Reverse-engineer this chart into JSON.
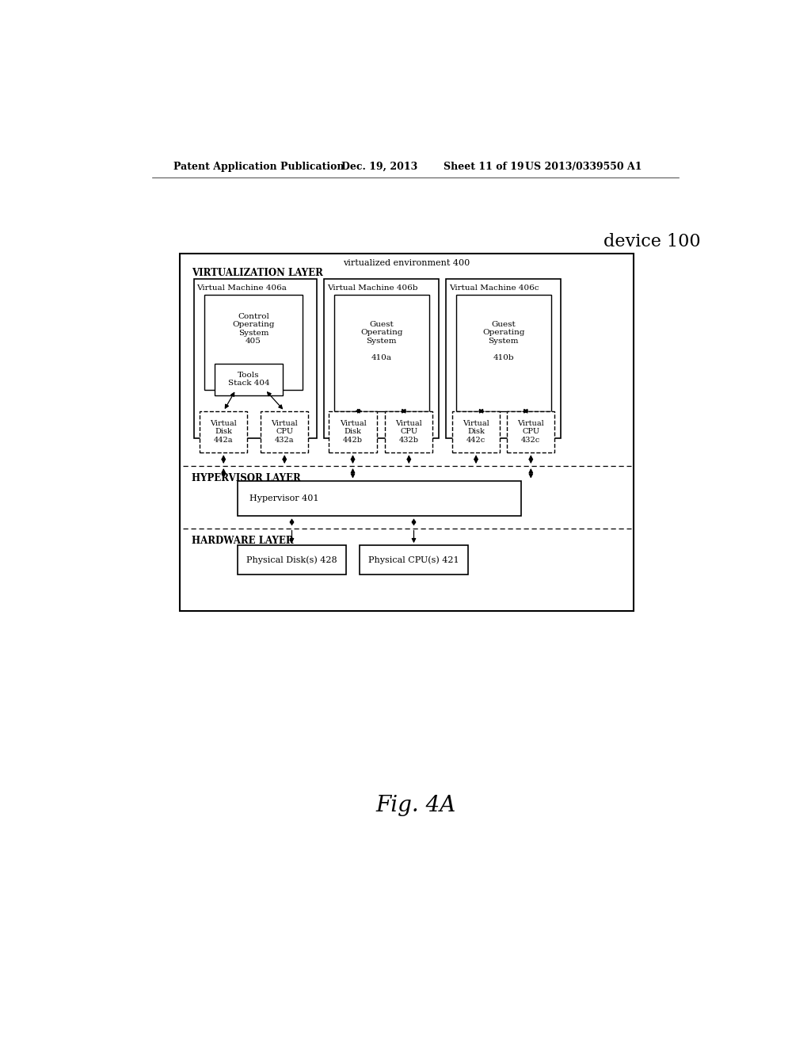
{
  "background_color": "#ffffff",
  "header_text": "Patent Application Publication",
  "header_date": "Dec. 19, 2013",
  "header_sheet": "Sheet 11 of 19",
  "header_patent": "US 2013/0339550 A1",
  "device_label": "device 100",
  "fig_label": "Fig. 4A"
}
